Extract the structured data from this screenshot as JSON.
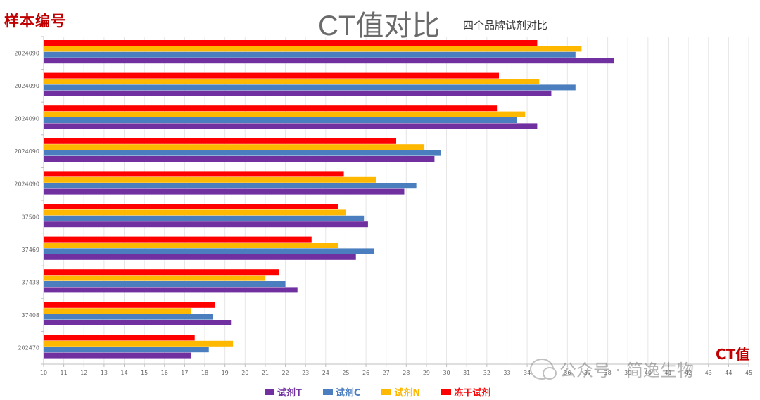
{
  "chart_data": {
    "type": "bar",
    "orientation": "horizontal",
    "title": "CT值对比",
    "subtitle": "四个品牌试剂对比",
    "ylabel": "样本编号",
    "xlabel": "CT值",
    "xlim": [
      10,
      45
    ],
    "x_ticks": [
      "10",
      "11",
      "12",
      "13",
      "14",
      "15",
      "16",
      "17",
      "18",
      "19",
      "20",
      "21",
      "22",
      "23",
      "24",
      "25",
      "26",
      "27",
      "28",
      "29",
      "30",
      "31",
      "32",
      "33",
      "34",
      "35",
      "36",
      "37",
      "38",
      "39",
      "40",
      "41",
      "42",
      "43",
      "44",
      "45"
    ],
    "grid": true,
    "legend_position": "bottom",
    "categories": [
      "2024090",
      "2024090",
      "2024090",
      "2024090",
      "2024090",
      "37500",
      "37469",
      "37438",
      "37408",
      "202470"
    ],
    "series": [
      {
        "name": "试剂T",
        "color": "#7030a0",
        "values": [
          38.3,
          35.2,
          34.5,
          29.4,
          27.9,
          26.1,
          25.5,
          22.6,
          19.3,
          17.3
        ]
      },
      {
        "name": "试剂C",
        "color": "#4a7ebf",
        "values": [
          36.4,
          36.4,
          33.5,
          29.7,
          28.5,
          25.9,
          26.4,
          22.0,
          18.4,
          18.2
        ]
      },
      {
        "name": "试剂N",
        "color": "#ffb800",
        "values": [
          36.7,
          34.6,
          33.9,
          28.9,
          26.5,
          25.0,
          24.6,
          21.0,
          17.3,
          19.4
        ]
      },
      {
        "name": "冻干试剂",
        "color": "#ff0000",
        "values": [
          34.5,
          32.6,
          32.5,
          27.5,
          24.9,
          24.6,
          23.3,
          21.7,
          18.5,
          17.5
        ]
      }
    ]
  },
  "watermark": {
    "text": "公众号 · 简逸生物"
  }
}
